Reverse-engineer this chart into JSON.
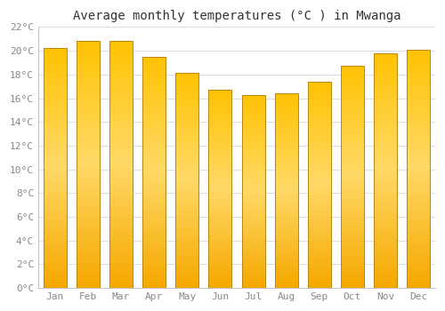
{
  "title": "Average monthly temperatures (°C ) in Mwanga",
  "months": [
    "Jan",
    "Feb",
    "Mar",
    "Apr",
    "May",
    "Jun",
    "Jul",
    "Aug",
    "Sep",
    "Oct",
    "Nov",
    "Dec"
  ],
  "temperatures": [
    20.2,
    20.8,
    20.8,
    19.5,
    18.1,
    16.7,
    16.3,
    16.4,
    17.4,
    18.7,
    19.8,
    20.1
  ],
  "bar_color_top": "#FFC200",
  "bar_color_mid": "#FFD966",
  "bar_color_bottom": "#F5A800",
  "bar_edge_color": "#b8860b",
  "ylim": [
    0,
    22
  ],
  "ytick_step": 2,
  "background_color": "#ffffff",
  "grid_color": "#dddddd",
  "title_fontsize": 10,
  "tick_fontsize": 8,
  "tick_color": "#888888",
  "label_font": "monospace",
  "bar_width": 0.7
}
